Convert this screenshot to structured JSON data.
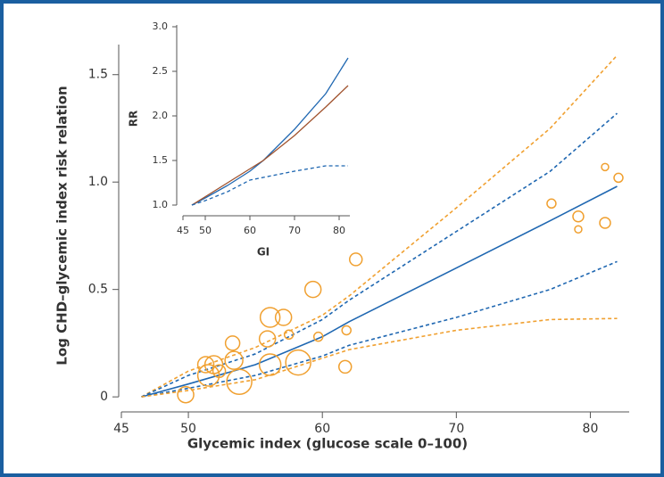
{
  "chart_data": [
    {
      "type": "line",
      "x_label": "Glycemic index (glucose scale 0–100)",
      "y_label": "Log CHD–glycemic index risk relation",
      "xlim": [
        44.8,
        82.9
      ],
      "ylim": [
        -0.07,
        1.64
      ],
      "xticks": [
        45,
        50,
        60,
        70,
        80
      ],
      "yticks": [
        0,
        0.5,
        {
          "value": 1,
          "label": "1.0"
        },
        1.5
      ],
      "series": [
        {
          "color": "#f0a030",
          "dash": true,
          "x": [
            46.5,
            50,
            55,
            60,
            62,
            70,
            77,
            82
          ],
          "values": [
            0,
            0.12,
            0.23,
            0.38,
            0.47,
            0.88,
            1.25,
            1.59
          ]
        },
        {
          "color": "#1f67b1",
          "dash": true,
          "x": [
            46.5,
            50,
            55,
            60,
            62,
            70,
            77,
            82
          ],
          "values": [
            0,
            0.1,
            0.2,
            0.36,
            0.45,
            0.77,
            1.05,
            1.32
          ]
        },
        {
          "color": "#1f67b1",
          "dash": false,
          "x": [
            46.5,
            50,
            55,
            60,
            62,
            70,
            77,
            82
          ],
          "values": [
            0,
            0.06,
            0.15,
            0.28,
            0.35,
            0.6,
            0.82,
            0.98
          ]
        },
        {
          "color": "#1f67b1",
          "dash": true,
          "x": [
            46.5,
            50,
            55,
            60,
            62,
            70,
            77,
            82
          ],
          "values": [
            0,
            0.04,
            0.1,
            0.19,
            0.24,
            0.37,
            0.5,
            0.63
          ]
        },
        {
          "color": "#f0a030",
          "dash": true,
          "x": [
            46.5,
            50,
            55,
            60,
            62,
            70,
            77,
            82
          ],
          "values": [
            0,
            0.03,
            0.08,
            0.18,
            0.22,
            0.31,
            0.36,
            0.365
          ]
        },
        {
          "color": "#f0a030",
          "marker": "circle",
          "x": [
            62.5,
            59.3,
            56.1,
            57.1,
            57.5,
            59.7,
            61.8,
            61.7,
            55.9,
            53.3,
            53.4,
            51.3,
            51.9,
            52.3,
            51.5,
            53.8,
            56.1,
            58.2,
            49.8,
            77.1,
            79.1,
            79.1,
            81.1,
            81.1,
            82.1
          ],
          "values": [
            0.64,
            0.5,
            0.37,
            0.37,
            0.29,
            0.28,
            0.31,
            0.14,
            0.27,
            0.25,
            0.17,
            0.15,
            0.15,
            0.12,
            0.1,
            0.07,
            0.15,
            0.16,
            0.01,
            0.9,
            0.84,
            0.78,
            0.81,
            1.07,
            1.02
          ],
          "sizes": [
            7,
            9,
            11,
            9,
            5,
            5,
            5,
            7,
            9,
            8,
            10,
            9,
            10,
            7,
            12,
            14,
            12,
            14,
            9,
            5,
            6,
            4,
            6,
            4,
            5
          ]
        }
      ]
    },
    {
      "type": "line",
      "x_label": "GI",
      "y_label": "RR",
      "xlim": [
        43.6,
        82.4
      ],
      "ylim": [
        0.88,
        3.02
      ],
      "xticks": [
        45,
        50,
        60,
        70,
        80
      ],
      "yticks": [
        {
          "value": 1,
          "label": "1.0"
        },
        1.5,
        {
          "value": 2,
          "label": "2.0"
        },
        2.5,
        {
          "value": 3,
          "label": "3.0"
        }
      ],
      "series": [
        {
          "color": "#1f67b1",
          "dash": false,
          "x": [
            47,
            50,
            55,
            60,
            63,
            70,
            77,
            82
          ],
          "values": [
            1,
            1.08,
            1.22,
            1.38,
            1.5,
            1.85,
            2.25,
            2.65
          ]
        },
        {
          "color": "#a0522d",
          "dash": false,
          "x": [
            47,
            55,
            63,
            70,
            77,
            82
          ],
          "values": [
            1,
            1.25,
            1.5,
            1.78,
            2.1,
            2.34
          ]
        },
        {
          "color": "#1f67b1",
          "dash": true,
          "x": [
            47,
            50,
            55,
            60,
            65,
            70,
            77,
            82
          ],
          "values": [
            1,
            1.05,
            1.15,
            1.28,
            1.33,
            1.38,
            1.44,
            1.44
          ]
        }
      ]
    }
  ]
}
